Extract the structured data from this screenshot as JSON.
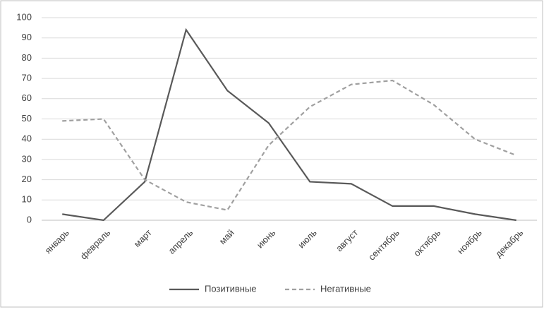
{
  "chart_data": {
    "type": "line",
    "categories": [
      "январь",
      "февраль",
      "март",
      "апрель",
      "май",
      "июнь",
      "июль",
      "август",
      "сентябрь",
      "октябрь",
      "ноябрь",
      "декабрь"
    ],
    "series": [
      {
        "name": "Позитивные",
        "color": "#595959",
        "dash": false,
        "values": [
          3,
          0,
          19,
          94,
          64,
          48,
          19,
          18,
          7,
          7,
          3,
          0
        ]
      },
      {
        "name": "Негативные",
        "color": "#a0a0a0",
        "dash": true,
        "values": [
          49,
          50,
          20,
          9,
          5,
          37,
          56,
          67,
          69,
          57,
          40,
          32
        ]
      }
    ],
    "ylim": [
      0,
      100
    ],
    "yticks": [
      0,
      10,
      20,
      30,
      40,
      50,
      60,
      70,
      80,
      90,
      100
    ],
    "grid": true,
    "legend": "bottom"
  }
}
